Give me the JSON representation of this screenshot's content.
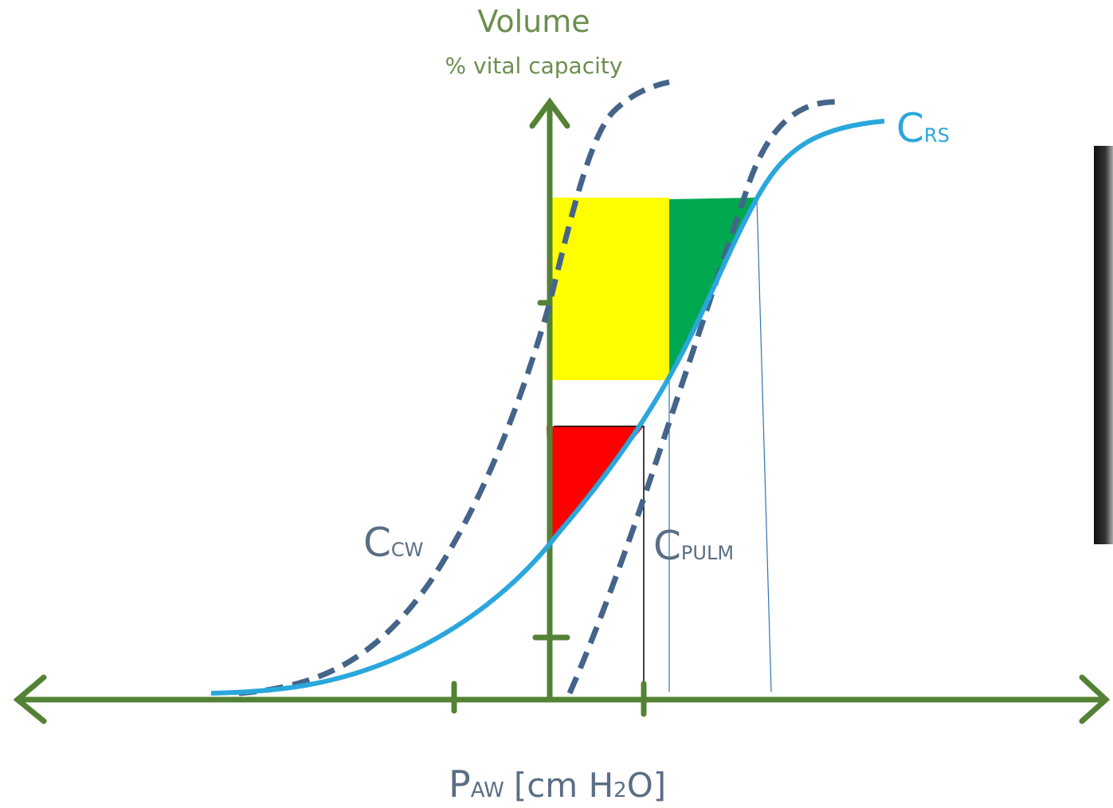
{
  "y_axis": {
    "title": "Volume",
    "subtitle": "% vital capacity"
  },
  "curves": [
    {
      "letter": "C",
      "subscript": "RS"
    },
    {
      "letter": "C",
      "subscript": "CW"
    },
    {
      "letter": "C",
      "subscript": "PULM"
    }
  ],
  "x_axis": {
    "letter": "P",
    "subscript": "AW",
    "unit_start": "[cm H",
    "unit_sub": "2",
    "unit_end": "O]"
  }
}
